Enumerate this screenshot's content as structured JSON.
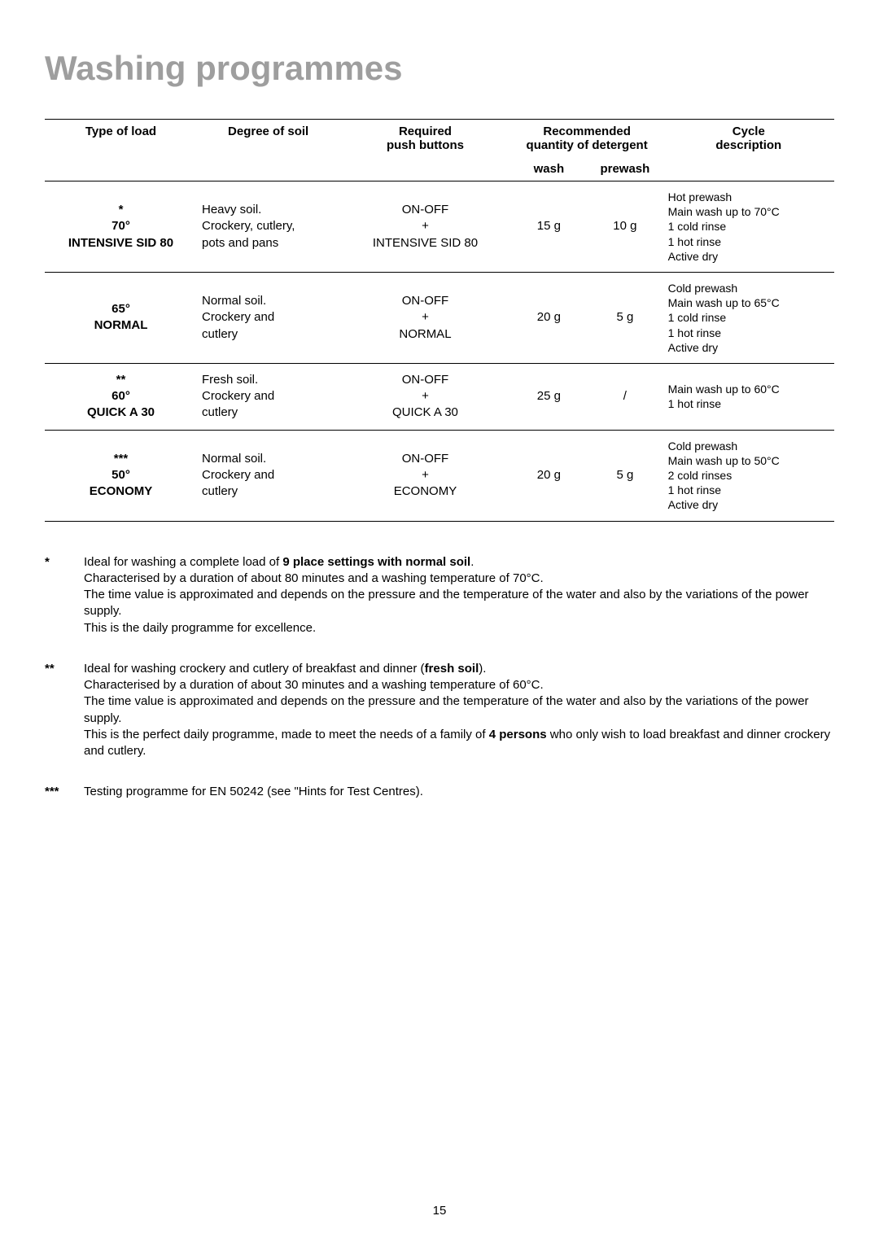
{
  "title": "Washing programmes",
  "pageNumber": "15",
  "headers": {
    "col1": "Type of load",
    "col2": "Degree of soil",
    "col3": "Required\npush buttons",
    "col4": "Recommended\nquantity of detergent",
    "col4a": "wash",
    "col4b": "prewash",
    "col5": "Cycle\ndescription"
  },
  "rows": [
    {
      "load": "*\n70°\nINTENSIVE SID 80",
      "soil": "Heavy soil.\nCrockery, cutlery,\npots and pans",
      "buttons": "ON-OFF\n+\nINTENSIVE SID 80",
      "wash": "15 g",
      "prewash": "10 g",
      "desc": "Hot prewash\nMain wash up to 70°C\n1 cold rinse\n1 hot rinse\nActive dry"
    },
    {
      "load": "65°\nNORMAL",
      "soil": "Normal soil.\nCrockery and\ncutlery",
      "buttons": "ON-OFF\n+\nNORMAL",
      "wash": "20 g",
      "prewash": "5 g",
      "desc": "Cold prewash\nMain wash up to 65°C\n1 cold rinse\n1 hot rinse\nActive dry"
    },
    {
      "load": "**\n60°\nQUICK A 30",
      "soil": "Fresh soil.\nCrockery and\ncutlery",
      "buttons": "ON-OFF\n+\nQUICK A 30",
      "wash": "25 g",
      "prewash": "/",
      "desc": "Main wash up to 60°C\n1 hot rinse"
    },
    {
      "load": "***\n50°\nECONOMY",
      "soil": "Normal soil.\nCrockery and\ncutlery",
      "buttons": "ON-OFF\n+\nECONOMY",
      "wash": "20 g",
      "prewash": "5 g",
      "desc": "Cold prewash\nMain wash up to 50°C\n2 cold rinses\n1 hot rinse\nActive dry"
    }
  ],
  "footnotes": {
    "f1": {
      "marker": "*",
      "pre": "Ideal for washing a complete load of ",
      "bold1": "9 place settings with normal soil",
      "post": ".\nCharacterised by a duration of about 80 minutes and a washing temperature of 70°C.\nThe time value is approximated and depends on the pressure and the temperature of the water and also by the variations of the power supply.\nThis is the daily programme for excellence."
    },
    "f2": {
      "marker": "**",
      "pre": "Ideal for washing crockery and cutlery of breakfast and dinner (",
      "bold1": "fresh soil",
      "mid": ").\nCharacterised by a duration of about 30 minutes and a washing temperature of 60°C.\nThe time value is approximated and depends on the pressure and the temperature of the water and also by the variations of the power supply.\nThis is the perfect daily programme, made to meet the needs of a family of ",
      "bold2": "4 persons",
      "post": " who only wish to load breakfast and dinner crockery and cutlery."
    },
    "f3": {
      "marker": "***",
      "text": "Testing programme for EN 50242 (see \"Hints for Test Centres)."
    }
  }
}
